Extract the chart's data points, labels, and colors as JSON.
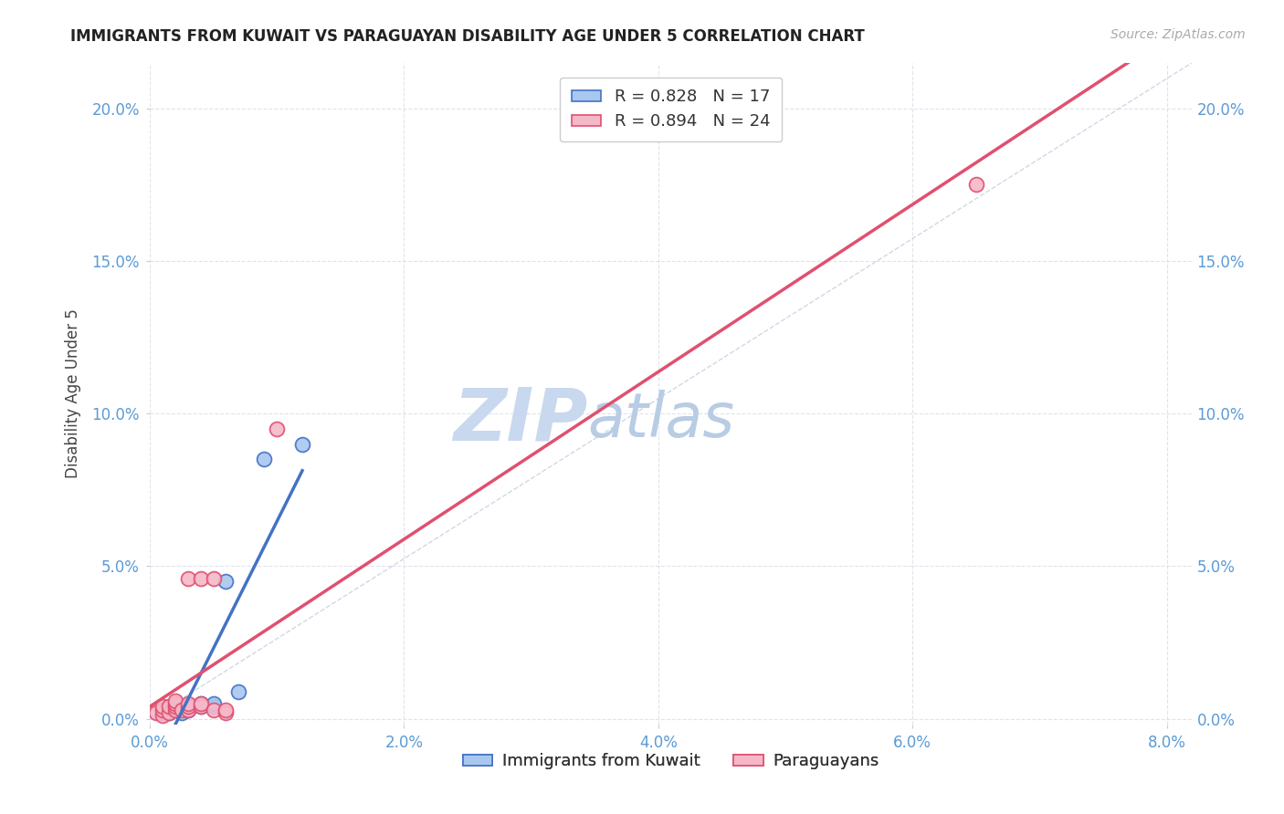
{
  "title": "IMMIGRANTS FROM KUWAIT VS PARAGUAYAN DISABILITY AGE UNDER 5 CORRELATION CHART",
  "source": "Source: ZipAtlas.com",
  "ylabel": "Disability Age Under 5",
  "x_ticks": [
    0.0,
    0.02,
    0.04,
    0.06,
    0.08
  ],
  "y_ticks": [
    0.0,
    0.05,
    0.1,
    0.15,
    0.2
  ],
  "x_tick_labels": [
    "0.0%",
    "2.0%",
    "4.0%",
    "6.0%",
    "8.0%"
  ],
  "y_tick_labels": [
    "0.0%",
    "5.0%",
    "10.0%",
    "15.0%",
    "20.0%"
  ],
  "x_lim": [
    0.0,
    0.082
  ],
  "y_lim": [
    -0.002,
    0.215
  ],
  "legend_entries": [
    {
      "label_r": "R = 0.828",
      "label_n": "N = 17",
      "color": "#a8c8f0",
      "edge": "#5b9bd5"
    },
    {
      "label_r": "R = 0.894",
      "label_n": "N = 24",
      "color": "#f5b8c8",
      "edge": "#e87090"
    }
  ],
  "legend_labels_bottom": [
    "Immigrants from Kuwait",
    "Paraguayans"
  ],
  "diagonal_color": "#c8cce0",
  "kuwait_points": [
    [
      0.001,
      0.002
    ],
    [
      0.001,
      0.003
    ],
    [
      0.0015,
      0.002
    ],
    [
      0.002,
      0.003
    ],
    [
      0.002,
      0.004
    ],
    [
      0.0025,
      0.002
    ],
    [
      0.003,
      0.003
    ],
    [
      0.003,
      0.004
    ],
    [
      0.003,
      0.0045
    ],
    [
      0.004,
      0.004
    ],
    [
      0.004,
      0.005
    ],
    [
      0.005,
      0.004
    ],
    [
      0.005,
      0.005
    ],
    [
      0.006,
      0.045
    ],
    [
      0.007,
      0.009
    ],
    [
      0.009,
      0.085
    ],
    [
      0.012,
      0.09
    ]
  ],
  "paraguay_points": [
    [
      0.0005,
      0.002
    ],
    [
      0.001,
      0.001
    ],
    [
      0.001,
      0.003
    ],
    [
      0.001,
      0.004
    ],
    [
      0.0015,
      0.002
    ],
    [
      0.0015,
      0.004
    ],
    [
      0.002,
      0.003
    ],
    [
      0.002,
      0.004
    ],
    [
      0.002,
      0.005
    ],
    [
      0.002,
      0.006
    ],
    [
      0.0025,
      0.003
    ],
    [
      0.003,
      0.003
    ],
    [
      0.003,
      0.004
    ],
    [
      0.003,
      0.005
    ],
    [
      0.003,
      0.046
    ],
    [
      0.004,
      0.004
    ],
    [
      0.004,
      0.005
    ],
    [
      0.004,
      0.046
    ],
    [
      0.005,
      0.003
    ],
    [
      0.005,
      0.046
    ],
    [
      0.006,
      0.002
    ],
    [
      0.006,
      0.003
    ],
    [
      0.01,
      0.095
    ],
    [
      0.065,
      0.175
    ]
  ],
  "kuwait_line_color": "#4472c4",
  "paraguay_line_color": "#e05070",
  "kuwait_marker_facecolor": "#a8c8f0",
  "paraguay_marker_facecolor": "#f5b8c8",
  "background_color": "#ffffff",
  "grid_color": "#dde0ea",
  "watermark_zip": "ZIP",
  "watermark_atlas": "atlas",
  "watermark_color_zip": "#c8d8ee",
  "watermark_color_atlas": "#b8cce4"
}
